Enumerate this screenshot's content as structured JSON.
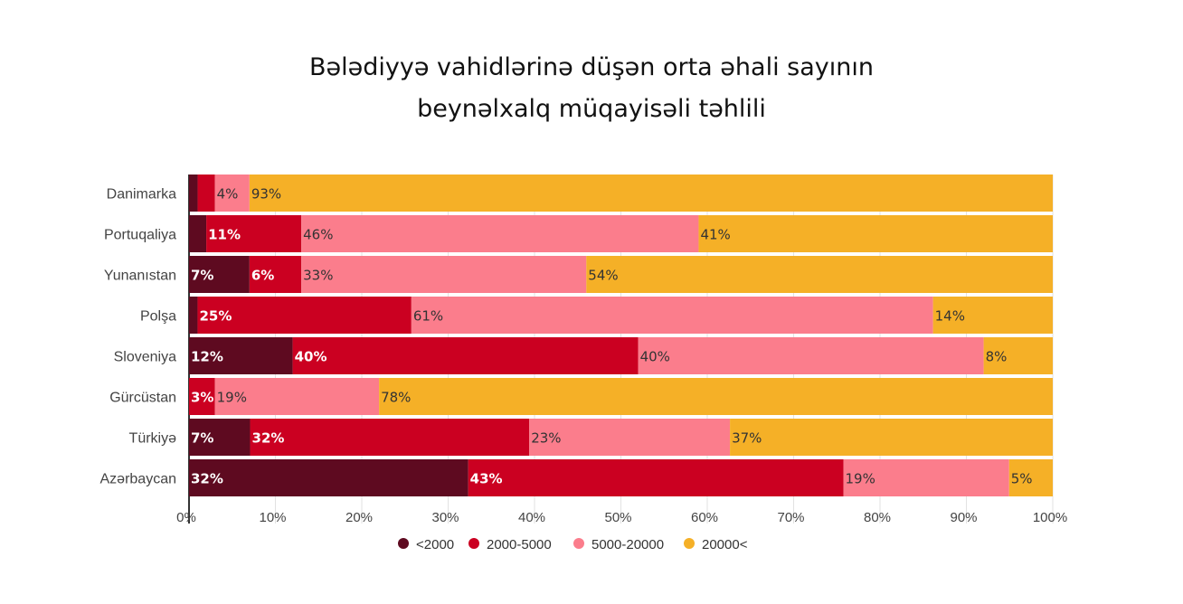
{
  "title_line1": "Bələdiyyə vahidlərinə düşən orta əhali sayının",
  "title_line2": "beynəlxalq müqayisəli təhlili",
  "chart_data": {
    "type": "bar",
    "orientation": "horizontal",
    "stacked": "percent",
    "categories": [
      "Danimarka",
      "Portuqaliya",
      "Yunanıstan",
      "Polşa",
      "Sloveniya",
      "Gürcüstan",
      "Türkiyə",
      "Azərbaycan"
    ],
    "series": [
      {
        "name": "<2000",
        "color": "#5e0a20",
        "values": [
          1,
          2,
          7,
          1,
          12,
          0,
          7,
          32
        ],
        "labels": [
          "",
          "",
          "7%",
          "",
          "12%",
          "",
          "7%",
          "32%"
        ]
      },
      {
        "name": "2000-5000",
        "color": "#cb0021",
        "values": [
          2,
          11,
          6,
          25,
          40,
          3,
          32,
          43
        ],
        "labels": [
          "",
          "11%",
          "6%",
          "25%",
          "40%",
          "3%",
          "32%",
          "43%"
        ]
      },
      {
        "name": "5000-20000",
        "color": "#fb7d8c",
        "values": [
          4,
          46,
          33,
          61,
          40,
          19,
          23,
          19
        ],
        "labels": [
          "4%",
          "46%",
          "33%",
          "61%",
          "40%",
          "19%",
          "23%",
          "19%"
        ]
      },
      {
        "name": "20000<",
        "color": "#f5b027",
        "values": [
          93,
          41,
          54,
          14,
          8,
          78,
          37,
          5
        ],
        "labels": [
          "93%",
          "41%",
          "54%",
          "14%",
          "8%",
          "78%",
          "37%",
          "5%"
        ]
      }
    ],
    "xlim": [
      0,
      100
    ],
    "x_ticks": [
      "0%",
      "10%",
      "20%",
      "30%",
      "40%",
      "50%",
      "60%",
      "70%",
      "80%",
      "90%",
      "100%"
    ],
    "grid": true,
    "legend_position": "bottom-center"
  }
}
